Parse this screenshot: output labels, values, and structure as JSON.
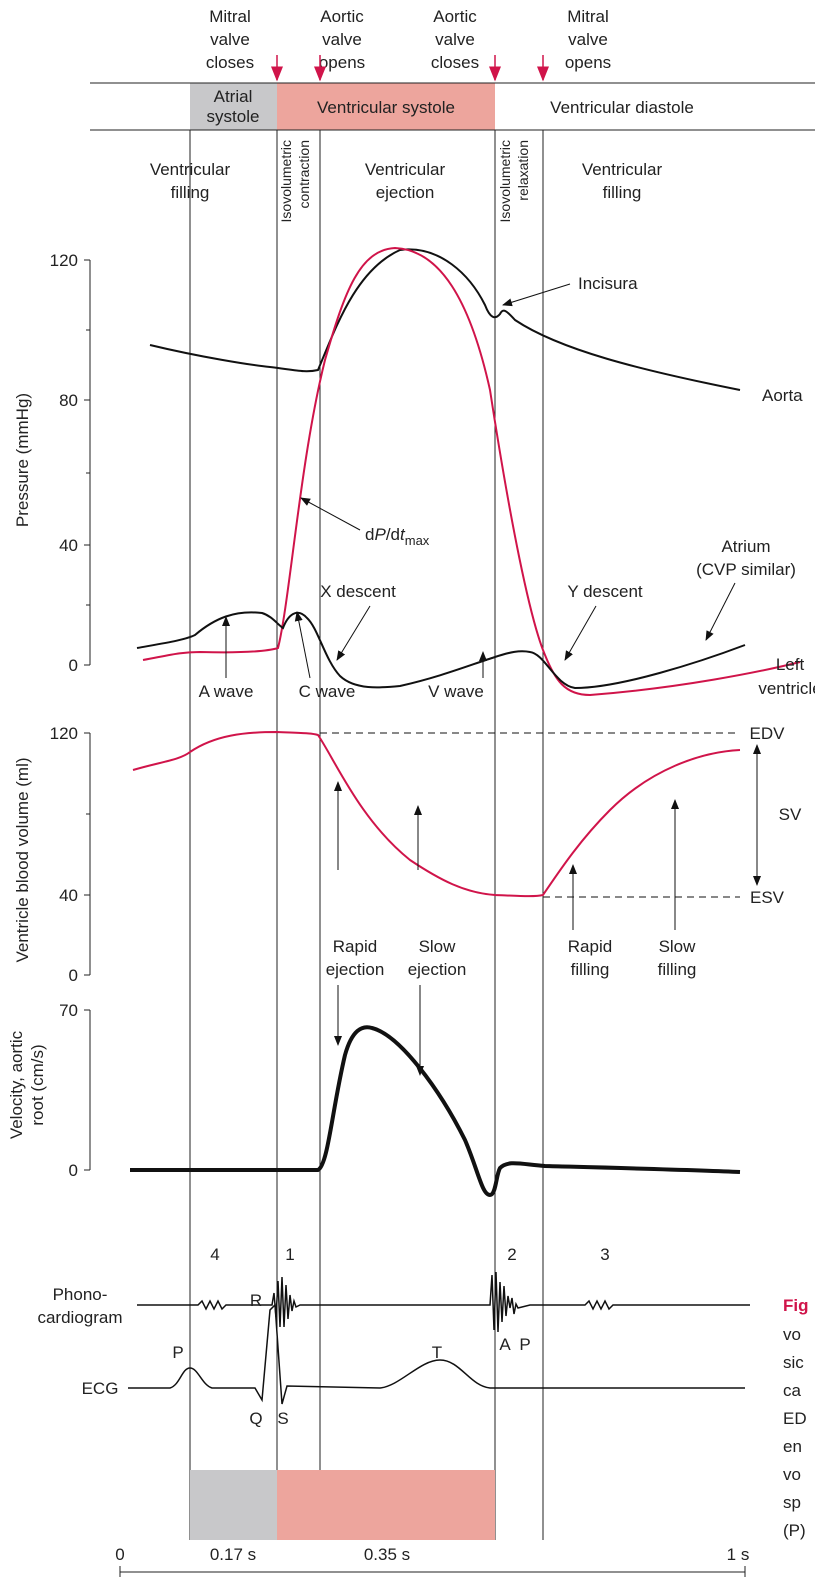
{
  "events": [
    [
      "Mitral",
      "valve",
      "closes"
    ],
    [
      "Aortic",
      "valve",
      "opens"
    ],
    [
      "Aortic",
      "valve",
      "closes"
    ],
    [
      "Mitral",
      "valve",
      "opens"
    ]
  ],
  "phase_bar": {
    "atrial": [
      "Atrial",
      "systole"
    ],
    "systole": "Ventricular systole",
    "diastole": "Ventricular diastole"
  },
  "phases": {
    "filling1": [
      "Ventricular",
      "filling"
    ],
    "contraction": [
      "Isovolumetric",
      "contraction"
    ],
    "ejection": [
      "Ventricular",
      "ejection"
    ],
    "relaxation": [
      "Isovolumetric",
      "relaxation"
    ],
    "filling2": [
      "Ventricular",
      "filling"
    ]
  },
  "pressure": {
    "axis_label": "Pressure (mmHg)",
    "ticks": [
      "120",
      "80",
      "40",
      "0"
    ],
    "labels": {
      "incisura": "Incisura",
      "aorta": "Aorta",
      "dpdt": [
        "d",
        "P",
        "/d",
        "t",
        "max"
      ],
      "atrium": [
        "Atrium",
        "(CVP similar)"
      ],
      "x_descent": "X descent",
      "y_descent": "Y descent",
      "left_ventricle": [
        "Left",
        "ventricle"
      ],
      "a_wave": "A wave",
      "c_wave": "C wave",
      "v_wave": "V wave"
    }
  },
  "volume": {
    "axis_label": "Ventricle blood volume (ml)",
    "ticks": [
      "120",
      "40",
      "0"
    ],
    "labels": {
      "edv": "EDV",
      "esv": "ESV",
      "sv": "SV",
      "rapid_ejection": [
        "Rapid",
        "ejection"
      ],
      "slow_ejection": [
        "Slow",
        "ejection"
      ],
      "rapid_filling": [
        "Rapid",
        "filling"
      ],
      "slow_filling": [
        "Slow",
        "filling"
      ]
    }
  },
  "velocity": {
    "axis_label": [
      "Velocity, aortic",
      "root (cm/s)"
    ],
    "ticks": [
      "70",
      "0"
    ]
  },
  "phonocardiogram": {
    "label": [
      "Phono-",
      "cardiogram"
    ],
    "sounds": [
      "4",
      "1",
      "2",
      "3"
    ],
    "components": [
      "A",
      "P"
    ]
  },
  "ecg": {
    "label": "ECG",
    "waves": [
      "P",
      "R",
      "T",
      "Q",
      "S"
    ]
  },
  "time_axis": {
    "start": "0",
    "atrial": "0.17 s",
    "systole": "0.35 s",
    "end": "1 s"
  },
  "caption": [
    "Fig",
    "vo",
    "sic",
    "ca",
    "ED",
    "en",
    "vo",
    "sp",
    "(P)"
  ]
}
